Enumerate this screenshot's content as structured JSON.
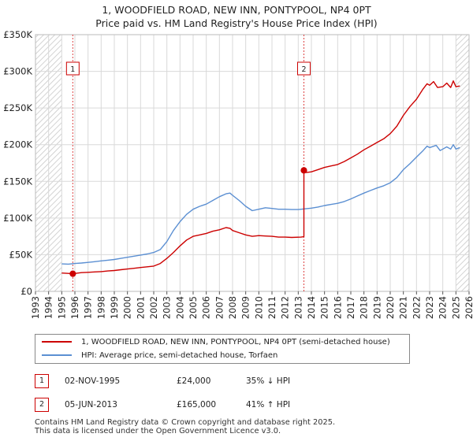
{
  "title": {
    "line1": "1, WOODFIELD ROAD, NEW INN, PONTYPOOL, NP4 0PT",
    "line2": "Price paid vs. HM Land Registry's House Price Index (HPI)"
  },
  "chart_data": {
    "type": "line",
    "xlim": [
      1993,
      2026
    ],
    "ylim": [
      0,
      350000
    ],
    "yticks": [
      {
        "value": 0,
        "label": "£0"
      },
      {
        "value": 50000,
        "label": "£50K"
      },
      {
        "value": 100000,
        "label": "£100K"
      },
      {
        "value": 150000,
        "label": "£150K"
      },
      {
        "value": 200000,
        "label": "£200K"
      },
      {
        "value": 250000,
        "label": "£250K"
      },
      {
        "value": 300000,
        "label": "£300K"
      },
      {
        "value": 350000,
        "label": "£350K"
      }
    ],
    "xticks": [
      "1993",
      "1994",
      "1995",
      "1996",
      "1997",
      "1998",
      "1999",
      "2000",
      "2001",
      "2002",
      "2003",
      "2004",
      "2005",
      "2006",
      "2007",
      "2008",
      "2009",
      "2010",
      "2011",
      "2012",
      "2013",
      "2014",
      "2015",
      "2016",
      "2017",
      "2018",
      "2019",
      "2020",
      "2021",
      "2022",
      "2023",
      "2024",
      "2025",
      "2026"
    ],
    "hatch_regions": [
      [
        1993,
        1995.0
      ],
      [
        2025.0,
        2026
      ]
    ],
    "series": [
      {
        "name": "1, WOODFIELD ROAD, NEW INN, PONTYPOOL, NP4 0PT (semi-detached house)",
        "color": "#cc0000",
        "points": [
          [
            1995.0,
            25000
          ],
          [
            1995.5,
            24500
          ],
          [
            1995.84,
            24000
          ],
          [
            1996.5,
            25500
          ],
          [
            1997.0,
            26000
          ],
          [
            1997.5,
            26500
          ],
          [
            1998.0,
            27000
          ],
          [
            1998.5,
            27800
          ],
          [
            1999.0,
            28500
          ],
          [
            1999.5,
            29500
          ],
          [
            2000.0,
            30500
          ],
          [
            2000.5,
            31500
          ],
          [
            2001.0,
            32500
          ],
          [
            2001.5,
            33500
          ],
          [
            2002.0,
            34500
          ],
          [
            2002.5,
            38000
          ],
          [
            2003.0,
            45000
          ],
          [
            2003.5,
            53000
          ],
          [
            2004.0,
            62000
          ],
          [
            2004.5,
            70000
          ],
          [
            2005.0,
            75000
          ],
          [
            2005.5,
            77000
          ],
          [
            2006.0,
            79000
          ],
          [
            2006.5,
            82000
          ],
          [
            2007.0,
            84000
          ],
          [
            2007.5,
            87000
          ],
          [
            2007.8,
            86000
          ],
          [
            2008.0,
            83000
          ],
          [
            2008.5,
            80000
          ],
          [
            2009.0,
            77000
          ],
          [
            2009.5,
            75000
          ],
          [
            2010.0,
            76000
          ],
          [
            2010.5,
            75500
          ],
          [
            2011.0,
            75000
          ],
          [
            2011.5,
            74000
          ],
          [
            2012.0,
            74000
          ],
          [
            2012.5,
            73500
          ],
          [
            2013.2,
            74000
          ],
          [
            2013.43,
            74500
          ],
          [
            2013.43,
            165000
          ],
          [
            2013.6,
            162000
          ],
          [
            2014.0,
            163000
          ],
          [
            2014.5,
            166000
          ],
          [
            2015.0,
            169000
          ],
          [
            2015.5,
            171000
          ],
          [
            2016.0,
            173000
          ],
          [
            2016.5,
            177000
          ],
          [
            2017.0,
            182000
          ],
          [
            2017.5,
            187000
          ],
          [
            2018.0,
            193000
          ],
          [
            2018.5,
            198000
          ],
          [
            2019.0,
            203000
          ],
          [
            2019.5,
            208000
          ],
          [
            2020.0,
            215000
          ],
          [
            2020.5,
            225000
          ],
          [
            2021.0,
            240000
          ],
          [
            2021.5,
            252000
          ],
          [
            2022.0,
            262000
          ],
          [
            2022.5,
            276000
          ],
          [
            2022.8,
            283000
          ],
          [
            2023.0,
            281000
          ],
          [
            2023.3,
            286000
          ],
          [
            2023.6,
            278000
          ],
          [
            2024.0,
            279000
          ],
          [
            2024.3,
            284000
          ],
          [
            2024.6,
            278000
          ],
          [
            2024.8,
            287000
          ],
          [
            2025.0,
            279000
          ],
          [
            2025.3,
            280000
          ]
        ]
      },
      {
        "name": "HPI: Average price, semi-detached house, Torfaen",
        "color": "#5b8fd2",
        "points": [
          [
            1995.0,
            37500
          ],
          [
            1995.5,
            37200
          ],
          [
            1996.0,
            38000
          ],
          [
            1996.5,
            38700
          ],
          [
            1997.0,
            39500
          ],
          [
            1997.5,
            40500
          ],
          [
            1998.0,
            41500
          ],
          [
            1998.5,
            42500
          ],
          [
            1999.0,
            43500
          ],
          [
            1999.5,
            45000
          ],
          [
            2000.0,
            46500
          ],
          [
            2000.5,
            48000
          ],
          [
            2001.0,
            49500
          ],
          [
            2001.5,
            51000
          ],
          [
            2002.0,
            53000
          ],
          [
            2002.5,
            57000
          ],
          [
            2003.0,
            68000
          ],
          [
            2003.5,
            83000
          ],
          [
            2004.0,
            95000
          ],
          [
            2004.5,
            105000
          ],
          [
            2005.0,
            112000
          ],
          [
            2005.5,
            116000
          ],
          [
            2006.0,
            119000
          ],
          [
            2006.5,
            124000
          ],
          [
            2007.0,
            129000
          ],
          [
            2007.5,
            133000
          ],
          [
            2007.8,
            134000
          ],
          [
            2008.0,
            131000
          ],
          [
            2008.5,
            124000
          ],
          [
            2009.0,
            116000
          ],
          [
            2009.5,
            110000
          ],
          [
            2010.0,
            112000
          ],
          [
            2010.5,
            114000
          ],
          [
            2011.0,
            113000
          ],
          [
            2011.5,
            112000
          ],
          [
            2012.0,
            112000
          ],
          [
            2012.5,
            111500
          ],
          [
            2013.0,
            111500
          ],
          [
            2013.5,
            112500
          ],
          [
            2014.0,
            113500
          ],
          [
            2014.5,
            115000
          ],
          [
            2015.0,
            117000
          ],
          [
            2015.5,
            118500
          ],
          [
            2016.0,
            120000
          ],
          [
            2016.5,
            122500
          ],
          [
            2017.0,
            126000
          ],
          [
            2017.5,
            130000
          ],
          [
            2018.0,
            134000
          ],
          [
            2018.5,
            137500
          ],
          [
            2019.0,
            141000
          ],
          [
            2019.5,
            144000
          ],
          [
            2020.0,
            148000
          ],
          [
            2020.5,
            155000
          ],
          [
            2021.0,
            166000
          ],
          [
            2021.5,
            174000
          ],
          [
            2022.0,
            183000
          ],
          [
            2022.5,
            192000
          ],
          [
            2022.8,
            198000
          ],
          [
            2023.0,
            196000
          ],
          [
            2023.5,
            199000
          ],
          [
            2023.8,
            192000
          ],
          [
            2024.0,
            194000
          ],
          [
            2024.3,
            197000
          ],
          [
            2024.6,
            194000
          ],
          [
            2024.8,
            200000
          ],
          [
            2025.0,
            194000
          ],
          [
            2025.3,
            196000
          ]
        ]
      }
    ],
    "transactions": [
      {
        "label": "1",
        "date": "02-NOV-1995",
        "year": 1995.84,
        "price": 24000,
        "price_label": "£24,000",
        "hpi": "35% ↓ HPI"
      },
      {
        "label": "2",
        "date": "05-JUN-2013",
        "year": 2013.43,
        "price": 165000,
        "price_label": "£165,000",
        "hpi": "41% ↑ HPI"
      }
    ]
  },
  "legend": {
    "property_label": "1, WOODFIELD ROAD, NEW INN, PONTYPOOL, NP4 0PT (semi-detached house)",
    "hpi_label": "HPI: Average price, semi-detached house, Torfaen",
    "property_color": "#cc0000",
    "hpi_color": "#5b8fd2"
  },
  "footer": {
    "line1": "Contains HM Land Registry data © Crown copyright and database right 2025.",
    "line2": "This data is licensed under the Open Government Licence v3.0."
  }
}
